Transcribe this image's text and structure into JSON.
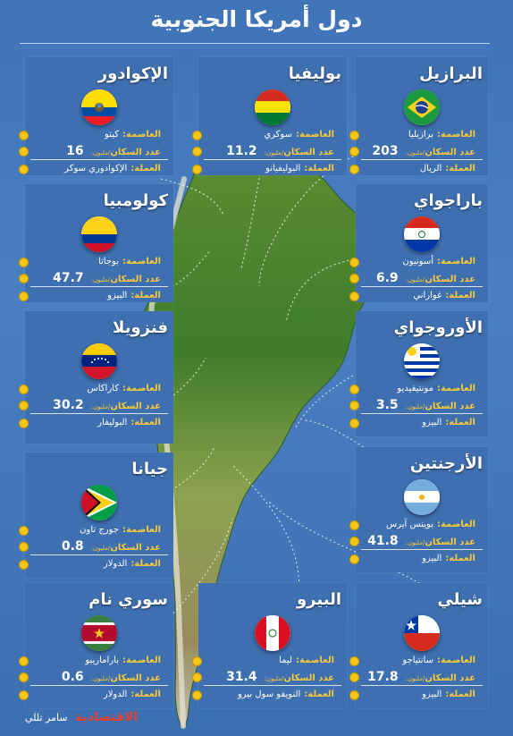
{
  "title": "دول أمريكا الجنوبية",
  "labels": {
    "capital": "العاصمة:",
    "population": "عدد السكان",
    "million": "/مليون:",
    "currency": "العملة:"
  },
  "countries": [
    {
      "name": "البرازيل",
      "capital": "برازيليا",
      "population": "203",
      "currency": "الريال"
    },
    {
      "name": "بوليفيا",
      "capital": "سوكري",
      "population": "11.2",
      "currency": "البوليفيانو"
    },
    {
      "name": "الإكوادور",
      "capital": "كيتو",
      "population": "16",
      "currency": "الإكوادوري سوكر"
    },
    {
      "name": "باراجواي",
      "capital": "أسونيون",
      "population": "6.9",
      "currency": "غواراني"
    },
    {
      "name": "كولومبيا",
      "capital": "بوجاتا",
      "population": "47.7",
      "currency": "البيزو"
    },
    {
      "name": "الأوروجواي",
      "capital": "مونتيفيديو",
      "population": "3.5",
      "currency": "البيزو"
    },
    {
      "name": "فنزويلا",
      "capital": "كاراكاس",
      "population": "30.2",
      "currency": "البوليفار"
    },
    {
      "name": "الأرجنتين",
      "capital": "بوينس آيرس",
      "population": "41.8",
      "currency": "البيزو"
    },
    {
      "name": "جيانا",
      "capital": "جورج تاون",
      "population": "0.8",
      "currency": "الدولار"
    },
    {
      "name": "شيلي",
      "capital": "سانتياجو",
      "population": "17.8",
      "currency": "البيزو"
    },
    {
      "name": "البيرو",
      "capital": "ليما",
      "population": "31.4",
      "currency": "النويفو سول بيرو"
    },
    {
      "name": "سوري نام",
      "capital": "باراماريبو",
      "population": "0.6",
      "currency": "الدولار"
    }
  ],
  "footer": {
    "brand": "الاقتصادية",
    "author": "سامر تللي"
  },
  "colors": {
    "background": "#4a7fc2",
    "panel": "#3e6fb0",
    "accent": "#f5c518",
    "brand": "#e8412c"
  }
}
